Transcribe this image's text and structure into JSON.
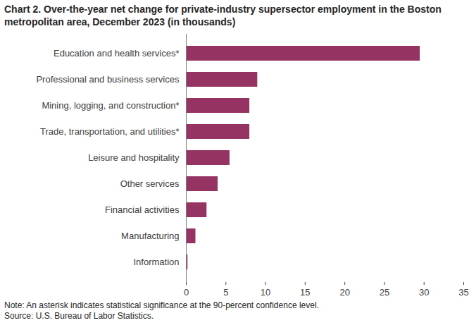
{
  "chart_data": {
    "type": "bar",
    "orientation": "horizontal",
    "title": "Chart 2. Over-the-year net change for private-industry supersector employment in the Boston metropolitan area, December 2023 (in thousands)",
    "categories": [
      "Education and health services*",
      "Professional and business services",
      "Mining, logging, and construction*",
      "Trade, transportation, and utilities*",
      "Leisure and hospitality",
      "Other services",
      "Financial activities",
      "Manufacturing",
      "Information"
    ],
    "values": [
      29.5,
      9.0,
      8.0,
      8.0,
      5.5,
      4.0,
      2.6,
      1.2,
      0.2
    ],
    "color": "#953462",
    "xlim": [
      0,
      35
    ],
    "xticks": [
      0,
      5,
      10,
      15,
      20,
      25,
      30,
      35
    ],
    "grid": false,
    "data_labels": false,
    "notes": [
      "Note: An asterisk indicates statistical significance at the 90-percent confidence level.",
      "Source: U.S. Bureau of Labor Statistics."
    ]
  }
}
